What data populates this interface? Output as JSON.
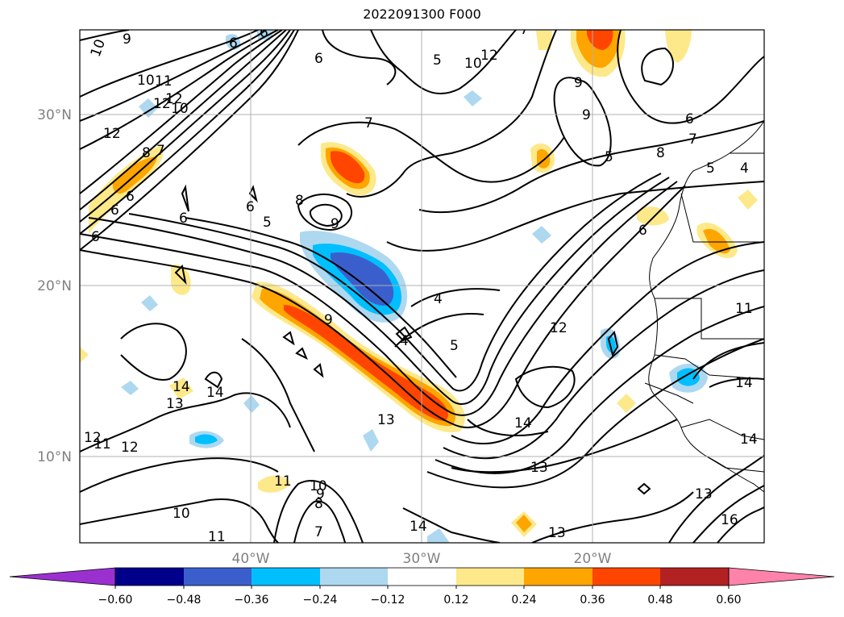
{
  "title": "2022091300 F000",
  "latitude_labels": [
    "30°N",
    "20°N",
    "10°N"
  ],
  "longitude_labels": [
    "40°W",
    "30°W",
    "20°W"
  ],
  "colorbar": {
    "ticks": [
      "−0.60",
      "−0.48",
      "−0.36",
      "−0.24",
      "−0.12",
      "0.12",
      "0.24",
      "0.36",
      "0.48",
      "0.60"
    ],
    "colors": [
      "#9b30d0",
      "#00008b",
      "#3a5fcd",
      "#00bfff",
      "#add8f0",
      "#ffffff",
      "#fde98a",
      "#ffa500",
      "#ff4500",
      "#b22222",
      "#ff82ab"
    ]
  },
  "contour_labels": [
    "10",
    "9",
    "6",
    "6",
    "10",
    "12",
    "11",
    "12",
    "10",
    "12",
    "8",
    "7",
    "6",
    "6",
    "6",
    "6",
    "6",
    "5",
    "7",
    "8",
    "9",
    "6",
    "12",
    "10",
    "5",
    "7",
    "9",
    "9",
    "6",
    "5",
    "8",
    "7",
    "5",
    "4",
    "6",
    "4",
    "5",
    "4",
    "12",
    "9",
    "11",
    "14",
    "14",
    "14",
    "13",
    "13",
    "12",
    "14",
    "13",
    "11",
    "10",
    "9",
    "8",
    "7",
    "10",
    "11",
    "14",
    "13",
    "13",
    "14",
    "16",
    "12",
    "11"
  ]
}
